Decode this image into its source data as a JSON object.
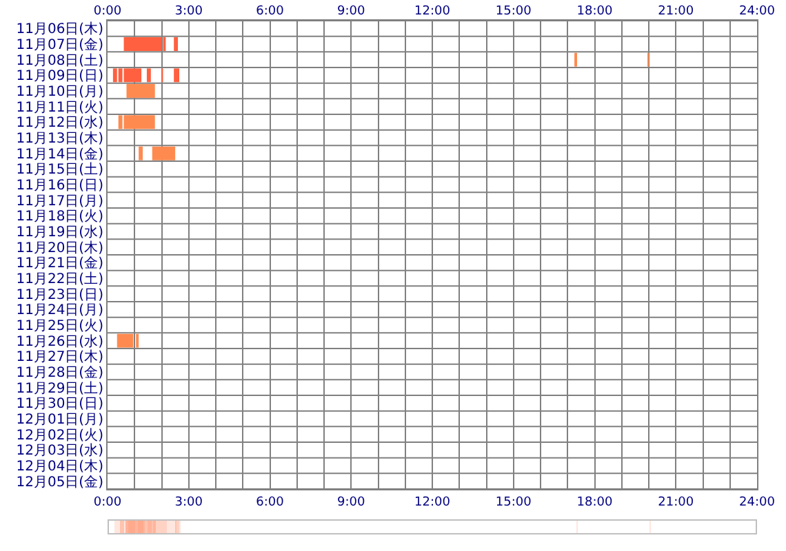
{
  "chart_data": {
    "type": "bar",
    "orientation": "horizontal",
    "grid": true,
    "categories": [
      "11月06日(木)",
      "11月07日(金)",
      "11月08日(土)",
      "11月09日(日)",
      "11月10日(月)",
      "11月11日(火)",
      "11月12日(水)",
      "11月13日(木)",
      "11月14日(金)",
      "11月15日(土)",
      "11月16日(日)",
      "11月17日(月)",
      "11月18日(火)",
      "11月19日(水)",
      "11月20日(木)",
      "11月21日(金)",
      "11月22日(土)",
      "11月23日(日)",
      "11月24日(月)",
      "11月25日(火)",
      "11月26日(水)",
      "11月27日(木)",
      "11月28日(金)",
      "11月29日(土)",
      "11月30日(日)",
      "12月01日(月)",
      "12月02日(火)",
      "12月03日(水)",
      "12月04日(木)",
      "12月05日(金)"
    ],
    "xlim": [
      0,
      24
    ],
    "xticks": [
      {
        "value": 0,
        "label": "0:00"
      },
      {
        "value": 1,
        "label": null
      },
      {
        "value": 2,
        "label": null
      },
      {
        "value": 3,
        "label": "3:00"
      },
      {
        "value": 4,
        "label": null
      },
      {
        "value": 5,
        "label": null
      },
      {
        "value": 6,
        "label": "6:00"
      },
      {
        "value": 7,
        "label": null
      },
      {
        "value": 8,
        "label": null
      },
      {
        "value": 9,
        "label": "9:00"
      },
      {
        "value": 10,
        "label": null
      },
      {
        "value": 11,
        "label": null
      },
      {
        "value": 12,
        "label": "12:00"
      },
      {
        "value": 13,
        "label": null
      },
      {
        "value": 14,
        "label": null
      },
      {
        "value": 15,
        "label": "15:00"
      },
      {
        "value": 16,
        "label": null
      },
      {
        "value": 17,
        "label": null
      },
      {
        "value": 18,
        "label": "18:00"
      },
      {
        "value": 19,
        "label": null
      },
      {
        "value": 20,
        "label": null
      },
      {
        "value": 21,
        "label": "21:00"
      },
      {
        "value": 22,
        "label": null
      },
      {
        "value": 23,
        "label": null
      },
      {
        "value": 24,
        "label": "24:00"
      }
    ],
    "x2lim": [
      0,
      24
    ],
    "x2ticks": [
      {
        "value": 0,
        "label": "0:00"
      },
      {
        "value": 1,
        "label": null
      },
      {
        "value": 2,
        "label": null
      },
      {
        "value": 3,
        "label": "3:00"
      },
      {
        "value": 4,
        "label": null
      },
      {
        "value": 5,
        "label": null
      },
      {
        "value": 6,
        "label": "6:00"
      },
      {
        "value": 7,
        "label": null
      },
      {
        "value": 8,
        "label": null
      },
      {
        "value": 9,
        "label": "9:00"
      },
      {
        "value": 10,
        "label": null
      },
      {
        "value": 11,
        "label": null
      },
      {
        "value": 12,
        "label": "12:00"
      },
      {
        "value": 13,
        "label": null
      },
      {
        "value": 14,
        "label": null
      },
      {
        "value": 15,
        "label": "15:00"
      },
      {
        "value": 16,
        "label": null
      },
      {
        "value": 17,
        "label": null
      },
      {
        "value": 18,
        "label": "18:00"
      },
      {
        "value": 19,
        "label": null
      },
      {
        "value": 20,
        "label": null
      },
      {
        "value": 21,
        "label": "21:00"
      },
      {
        "value": 22,
        "label": null
      },
      {
        "value": 23,
        "label": null
      },
      {
        "value": 24,
        "label": "24:00"
      }
    ],
    "series": [
      {
        "values": [
          null,
          1.4,
          0.1,
          0.15,
          1.05,
          null,
          0.15,
          null,
          0.15,
          null,
          null,
          null,
          null,
          null,
          null,
          null,
          null,
          null,
          null,
          null,
          0.6,
          null,
          null,
          null,
          null,
          null,
          null,
          null,
          null,
          null
        ],
        "base": [
          null,
          0.6,
          17.25,
          0.2,
          0.7,
          null,
          0.4,
          null,
          1.15,
          null,
          null,
          null,
          null,
          null,
          null,
          null,
          null,
          null,
          null,
          null,
          0.35,
          null,
          null,
          null,
          null,
          null,
          null,
          null,
          null,
          null
        ],
        "colors": [
          null,
          "#ff6040",
          "#ff8a50",
          "#ff6040",
          "#ff8a50",
          null,
          "#ff8a50",
          null,
          "#ff8a50",
          null,
          null,
          null,
          null,
          null,
          null,
          null,
          null,
          null,
          null,
          null,
          "#ff8a50",
          null,
          null,
          null,
          null,
          null,
          null,
          null,
          null,
          null
        ]
      },
      {
        "values": [
          null,
          0.1,
          0.05,
          0.15,
          null,
          null,
          1.15,
          null,
          0.85,
          null,
          null,
          null,
          null,
          null,
          null,
          null,
          null,
          null,
          null,
          null,
          0.1,
          null,
          null,
          null,
          null,
          null,
          null,
          null,
          null,
          null
        ],
        "base": [
          null,
          2.05,
          19.95,
          0.4,
          null,
          null,
          0.6,
          null,
          1.65,
          null,
          null,
          null,
          null,
          null,
          null,
          null,
          null,
          null,
          null,
          null,
          1.05,
          null,
          null,
          null,
          null,
          null,
          null,
          null,
          null,
          null
        ],
        "colors": [
          null,
          "#ff6040",
          "#ff8a50",
          "#ff6040",
          null,
          null,
          "#ff8a50",
          null,
          "#ff8a50",
          null,
          null,
          null,
          null,
          null,
          null,
          null,
          null,
          null,
          null,
          null,
          "#ff8a50",
          null,
          null,
          null,
          null,
          null,
          null,
          null,
          null,
          null
        ]
      },
      {
        "values": [
          null,
          0.15,
          null,
          0.65,
          null,
          null,
          null,
          null,
          null,
          null,
          null,
          null,
          null,
          null,
          null,
          null,
          null,
          null,
          null,
          null,
          null,
          null,
          null,
          null,
          null,
          null,
          null,
          null,
          null,
          null
        ],
        "base": [
          null,
          2.45,
          null,
          0.6,
          null,
          null,
          null,
          null,
          null,
          null,
          null,
          null,
          null,
          null,
          null,
          null,
          null,
          null,
          null,
          null,
          null,
          null,
          null,
          null,
          null,
          null,
          null,
          null,
          null,
          null
        ],
        "colors": [
          null,
          "#ff6040",
          null,
          "#ff6040",
          null,
          null,
          null,
          null,
          null,
          null,
          null,
          null,
          null,
          null,
          null,
          null,
          null,
          null,
          null,
          null,
          null,
          null,
          null,
          null,
          null,
          null,
          null,
          null,
          null,
          null
        ]
      },
      {
        "values": [
          null,
          null,
          null,
          0.15,
          null,
          null,
          null,
          null,
          null,
          null,
          null,
          null,
          null,
          null,
          null,
          null,
          null,
          null,
          null,
          null,
          null,
          null,
          null,
          null,
          null,
          null,
          null,
          null,
          null,
          null
        ],
        "base": [
          null,
          null,
          null,
          1.45,
          null,
          null,
          null,
          null,
          null,
          null,
          null,
          null,
          null,
          null,
          null,
          null,
          null,
          null,
          null,
          null,
          null,
          null,
          null,
          null,
          null,
          null,
          null,
          null,
          null,
          null
        ],
        "colors": [
          null,
          null,
          null,
          "#ff6040",
          null,
          null,
          null,
          null,
          null,
          null,
          null,
          null,
          null,
          null,
          null,
          null,
          null,
          null,
          null,
          null,
          null,
          null,
          null,
          null,
          null,
          null,
          null,
          null,
          null,
          null
        ]
      },
      {
        "values": [
          null,
          null,
          null,
          0.05,
          null,
          null,
          null,
          null,
          null,
          null,
          null,
          null,
          null,
          null,
          null,
          null,
          null,
          null,
          null,
          null,
          null,
          null,
          null,
          null,
          null,
          null,
          null,
          null,
          null,
          null
        ],
        "base": [
          null,
          null,
          null,
          2.0,
          null,
          null,
          null,
          null,
          null,
          null,
          null,
          null,
          null,
          null,
          null,
          null,
          null,
          null,
          null,
          null,
          null,
          null,
          null,
          null,
          null,
          null,
          null,
          null,
          null,
          null
        ],
        "colors": [
          null,
          null,
          null,
          "#ff6040",
          null,
          null,
          null,
          null,
          null,
          null,
          null,
          null,
          null,
          null,
          null,
          null,
          null,
          null,
          null,
          null,
          null,
          null,
          null,
          null,
          null,
          null,
          null,
          null,
          null,
          null
        ]
      },
      {
        "values": [
          null,
          null,
          null,
          0.2,
          null,
          null,
          null,
          null,
          null,
          null,
          null,
          null,
          null,
          null,
          null,
          null,
          null,
          null,
          null,
          null,
          null,
          null,
          null,
          null,
          null,
          null,
          null,
          null,
          null,
          null
        ],
        "base": [
          null,
          null,
          null,
          2.45,
          null,
          null,
          null,
          null,
          null,
          null,
          null,
          null,
          null,
          null,
          null,
          null,
          null,
          null,
          null,
          null,
          null,
          null,
          null,
          null,
          null,
          null,
          null,
          null,
          null,
          null
        ],
        "colors": [
          null,
          null,
          null,
          "#ff6040",
          null,
          null,
          null,
          null,
          null,
          null,
          null,
          null,
          null,
          null,
          null,
          null,
          null,
          null,
          null,
          null,
          null,
          null,
          null,
          null,
          null,
          null,
          null,
          null,
          null,
          null
        ]
      }
    ]
  }
}
